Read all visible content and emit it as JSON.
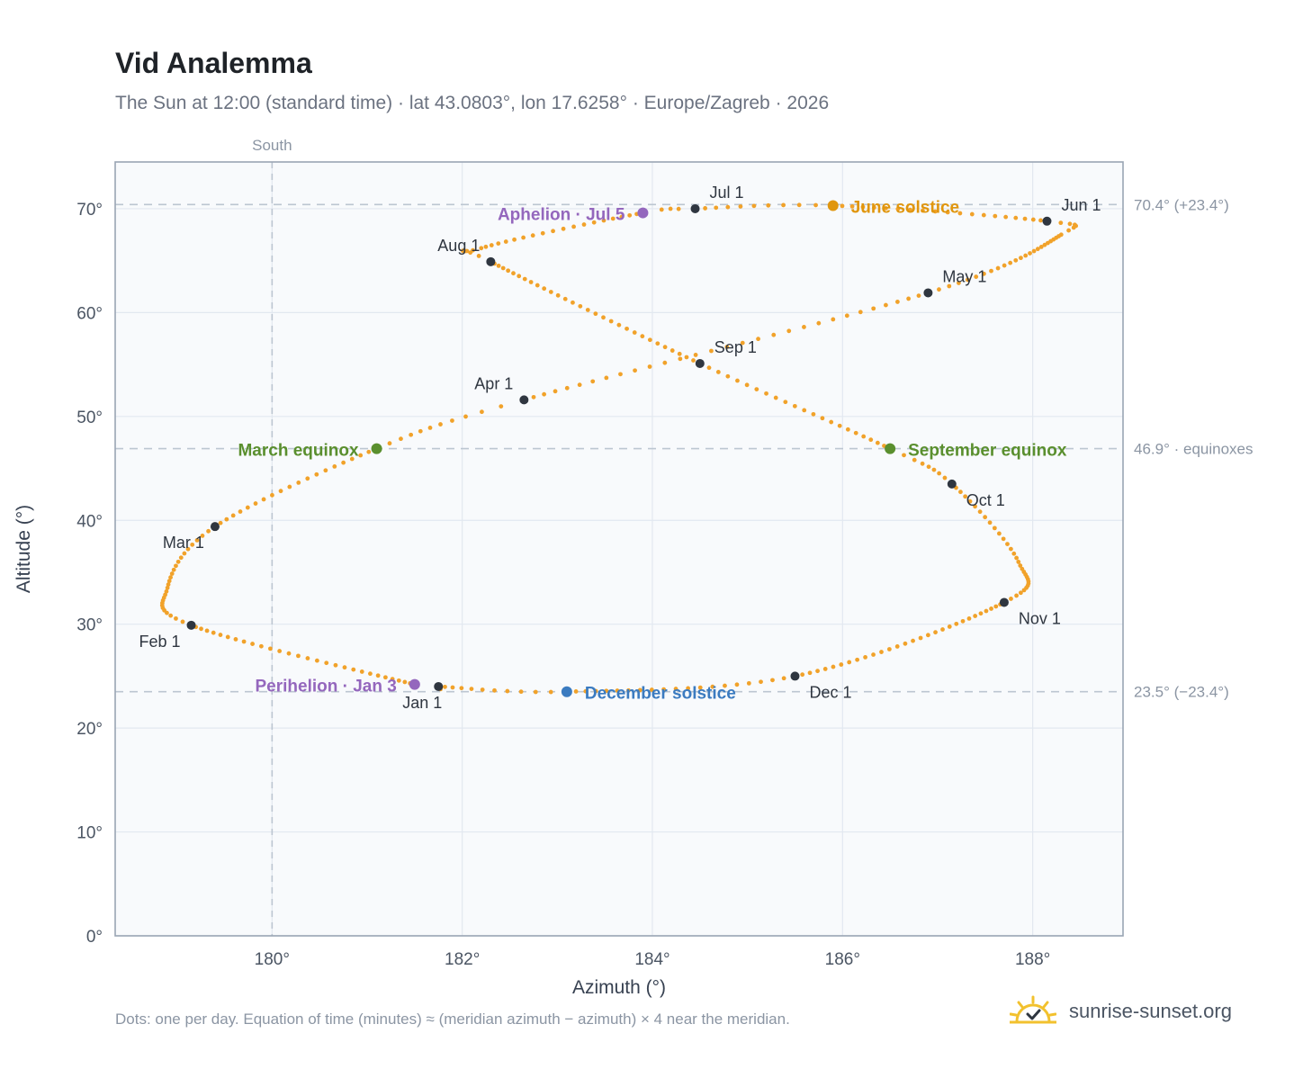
{
  "header": {
    "title": "Vid Analemma",
    "subtitle": "The Sun at 12:00 (standard time) · lat 43.0803°, lon 17.6258° · Europe/Zagreb · 2026"
  },
  "footer": {
    "note": "Dots: one per day. Equation of time (minutes) ≈ (meridian azimuth − azimuth) × 4 near the meridian.",
    "brand": "sunrise-sunset.org",
    "brand_icon": "sun-check-icon"
  },
  "colors": {
    "path": "#f1a22a",
    "month_marker": "#2f3640",
    "equinox": "#5a8f2e",
    "june_solstice": "#e0960e",
    "december_solstice": "#3b7bc0",
    "apsis": "#9467bd",
    "plot_bg": "#f8fafc",
    "grid": "#e2e8f0",
    "frame": "#9aa5b4",
    "ref_line": "#bcc6d1"
  },
  "chart_data": {
    "type": "scatter",
    "title": "Vid Analemma",
    "xlabel": "Azimuth (°)",
    "ylabel": "Altitude (°)",
    "xlim": [
      178.35,
      188.95
    ],
    "ylim": [
      0,
      74.5
    ],
    "xticks": [
      180,
      182,
      184,
      186,
      188
    ],
    "xtick_labels": [
      "180°",
      "182°",
      "184°",
      "186°",
      "188°"
    ],
    "yticks": [
      0,
      10,
      20,
      30,
      40,
      50,
      60,
      70
    ],
    "ytick_labels": [
      "0°",
      "10°",
      "20°",
      "30°",
      "40°",
      "50°",
      "60°",
      "70°"
    ],
    "grid": true,
    "meridian": {
      "azimuth": 180,
      "label": "South"
    },
    "reference_lines": [
      {
        "altitude": 70.4,
        "label": "70.4° (+23.4°)"
      },
      {
        "altitude": 46.9,
        "label": "46.9° · equinoxes"
      },
      {
        "altitude": 23.5,
        "label": "23.5° (−23.4°)"
      }
    ],
    "path_keypoints": [
      {
        "day": 1,
        "az": 181.75,
        "alt": 24.0
      },
      {
        "day": 3,
        "az": 181.5,
        "alt": 24.2
      },
      {
        "day": 32,
        "az": 179.15,
        "alt": 29.9
      },
      {
        "day": 45,
        "az": 178.9,
        "alt": 33.5
      },
      {
        "day": 60,
        "az": 179.4,
        "alt": 39.4
      },
      {
        "day": 80,
        "az": 181.1,
        "alt": 46.9
      },
      {
        "day": 91,
        "az": 182.65,
        "alt": 51.6
      },
      {
        "day": 121,
        "az": 186.9,
        "alt": 61.9
      },
      {
        "day": 145,
        "az": 188.3,
        "alt": 67.5
      },
      {
        "day": 152,
        "az": 188.15,
        "alt": 68.8
      },
      {
        "day": 172,
        "az": 185.9,
        "alt": 70.3
      },
      {
        "day": 182,
        "az": 184.45,
        "alt": 70.0
      },
      {
        "day": 186,
        "az": 183.9,
        "alt": 69.6
      },
      {
        "day": 205,
        "az": 182.2,
        "alt": 66.2
      },
      {
        "day": 213,
        "az": 182.3,
        "alt": 64.9
      },
      {
        "day": 244,
        "az": 184.5,
        "alt": 55.1
      },
      {
        "day": 266,
        "az": 186.5,
        "alt": 46.9
      },
      {
        "day": 274,
        "az": 187.15,
        "alt": 43.5
      },
      {
        "day": 290,
        "az": 187.85,
        "alt": 36.0
      },
      {
        "day": 305,
        "az": 187.7,
        "alt": 32.1
      },
      {
        "day": 335,
        "az": 185.5,
        "alt": 25.0
      },
      {
        "day": 355,
        "az": 183.1,
        "alt": 23.5
      },
      {
        "day": 366,
        "az": 181.75,
        "alt": 24.0
      }
    ],
    "month_markers": [
      {
        "label": "Jan 1",
        "az": 181.75,
        "alt": 24.0,
        "anchor": "below"
      },
      {
        "label": "Feb 1",
        "az": 179.15,
        "alt": 29.9,
        "anchor": "below-left"
      },
      {
        "label": "Mar 1",
        "az": 179.4,
        "alt": 39.4,
        "anchor": "below-left"
      },
      {
        "label": "Apr 1",
        "az": 182.65,
        "alt": 51.6,
        "anchor": "above-left"
      },
      {
        "label": "May 1",
        "az": 186.9,
        "alt": 61.9,
        "anchor": "above-right"
      },
      {
        "label": "Jun 1",
        "az": 188.15,
        "alt": 68.8,
        "anchor": "above-right"
      },
      {
        "label": "Jul 1",
        "az": 184.45,
        "alt": 70.0,
        "anchor": "above-right"
      },
      {
        "label": "Aug 1",
        "az": 182.3,
        "alt": 64.9,
        "anchor": "above-left"
      },
      {
        "label": "Sep 1",
        "az": 184.5,
        "alt": 55.1,
        "anchor": "above-right"
      },
      {
        "label": "Oct 1",
        "az": 187.15,
        "alt": 43.5,
        "anchor": "below-right"
      },
      {
        "label": "Nov 1",
        "az": 187.7,
        "alt": 32.1,
        "anchor": "below-right"
      },
      {
        "label": "Dec 1",
        "az": 185.5,
        "alt": 25.0,
        "anchor": "below-right"
      }
    ],
    "events": [
      {
        "label": "March equinox",
        "az": 181.1,
        "alt": 46.9,
        "color_key": "equinox",
        "side": "left"
      },
      {
        "label": "September equinox",
        "az": 186.5,
        "alt": 46.9,
        "color_key": "equinox",
        "side": "right"
      },
      {
        "label": "June solstice",
        "az": 185.9,
        "alt": 70.3,
        "color_key": "june_solstice",
        "side": "right"
      },
      {
        "label": "December solstice",
        "az": 183.1,
        "alt": 23.5,
        "color_key": "december_solstice",
        "side": "right"
      },
      {
        "label": "Aphelion · Jul 5",
        "az": 183.9,
        "alt": 69.6,
        "color_key": "apsis",
        "side": "left"
      },
      {
        "label": "Perihelion · Jan 3",
        "az": 181.5,
        "alt": 24.2,
        "color_key": "apsis",
        "side": "left"
      }
    ]
  }
}
